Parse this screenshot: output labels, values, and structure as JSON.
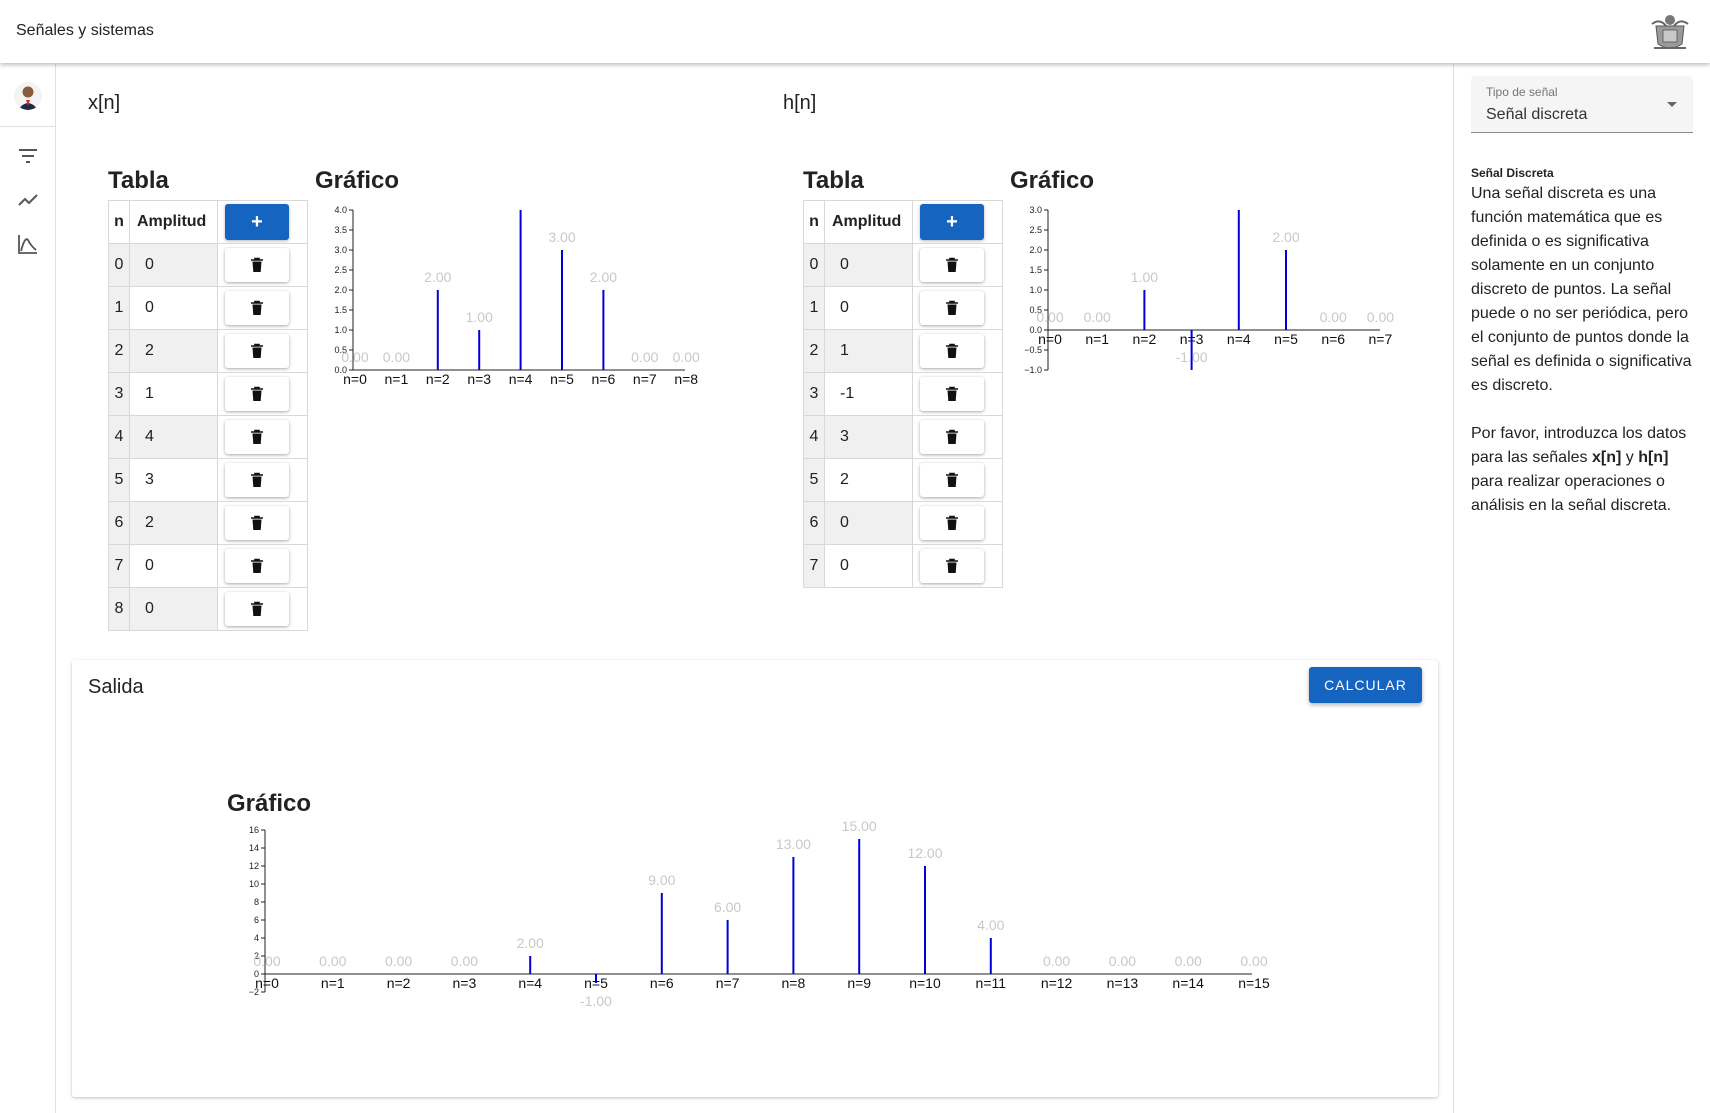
{
  "app": {
    "title": "Señales y sistemas"
  },
  "nav": {
    "icons": [
      "filter-icon",
      "line-chart-icon",
      "bell-curve-icon"
    ]
  },
  "signal_type": {
    "label": "Tipo de señal",
    "value": "Señal discreta"
  },
  "info": {
    "title": "Señal Discreta",
    "paragraph1": "Una señal discreta es una función matemática que es definida o es significativa solamente en un conjunto discreto de puntos. La señal puede o no ser periódica, pero el conjunto de puntos donde la señal es definida o significativa es discreto.",
    "p2_before": "Por favor, introduzca los datos para las señales ",
    "p2_x": "x[n]",
    "p2_mid": " y ",
    "p2_h": "h[n]",
    "p2_after": " para realizar operaciones o análisis en la señal discreta."
  },
  "x": {
    "label": "x[n]",
    "table_title": "Tabla",
    "chart_title": "Gráfico",
    "col_n": "n",
    "col_amp": "Amplitud",
    "add_label": "+",
    "rows": [
      {
        "n": "0",
        "amp": "0"
      },
      {
        "n": "1",
        "amp": "0"
      },
      {
        "n": "2",
        "amp": "2"
      },
      {
        "n": "3",
        "amp": "1"
      },
      {
        "n": "4",
        "amp": "4"
      },
      {
        "n": "5",
        "amp": "3"
      },
      {
        "n": "6",
        "amp": "2"
      },
      {
        "n": "7",
        "amp": "0"
      },
      {
        "n": "8",
        "amp": "0"
      }
    ]
  },
  "h": {
    "label": "h[n]",
    "table_title": "Tabla",
    "chart_title": "Gráfico",
    "col_n": "n",
    "col_amp": "Amplitud",
    "add_label": "+",
    "rows": [
      {
        "n": "0",
        "amp": "0"
      },
      {
        "n": "1",
        "amp": "0"
      },
      {
        "n": "2",
        "amp": "1"
      },
      {
        "n": "3",
        "amp": "-1"
      },
      {
        "n": "4",
        "amp": "3"
      },
      {
        "n": "5",
        "amp": "2"
      },
      {
        "n": "6",
        "amp": "0"
      },
      {
        "n": "7",
        "amp": "0"
      }
    ]
  },
  "output": {
    "label": "Salida",
    "button_label": "CALCULAR",
    "chart_title": "Gráfico"
  },
  "colors": {
    "accent": "#1565c0",
    "stem": "#0000dd",
    "data_label": "#c8c8c8"
  },
  "chart_data": [
    {
      "type": "stem",
      "categories": [
        "n=0",
        "n=1",
        "n=2",
        "n=3",
        "n=4",
        "n=5",
        "n=6",
        "n=7",
        "n=8"
      ],
      "values": [
        0,
        0,
        2,
        1,
        4,
        3,
        2,
        0,
        0
      ],
      "data_labels": [
        "0.00",
        "0.00",
        "2.00",
        "1.00",
        "",
        "3.00",
        "2.00",
        "0.00",
        "0.00"
      ],
      "ylim": [
        0,
        4
      ],
      "yticks": [
        "0.0",
        "0.5",
        "1.0",
        "1.5",
        "2.0",
        "2.5",
        "3.0",
        "3.5",
        "4.0"
      ]
    },
    {
      "type": "stem",
      "categories": [
        "n=0",
        "n=1",
        "n=2",
        "n=3",
        "n=4",
        "n=5",
        "n=6",
        "n=7"
      ],
      "values": [
        0,
        0,
        1,
        -1,
        3,
        2,
        0,
        0
      ],
      "data_labels": [
        "0.00",
        "0.00",
        "1.00",
        "-1.00",
        "",
        "2.00",
        "0.00",
        "0.00"
      ],
      "ylim": [
        -1,
        3
      ],
      "yticks": [
        "−1.0",
        "−0.5",
        "0.0",
        "0.5",
        "1.0",
        "1.5",
        "2.0",
        "2.5",
        "3.0"
      ]
    },
    {
      "type": "stem",
      "categories": [
        "n=0",
        "n=1",
        "n=2",
        "n=3",
        "n=4",
        "n=5",
        "n=6",
        "n=7",
        "n=8",
        "n=9",
        "n=10",
        "n=11",
        "n=12",
        "n=13",
        "n=14",
        "n=15"
      ],
      "values": [
        0,
        0,
        0,
        0,
        2,
        -1,
        9,
        6,
        13,
        15,
        12,
        4,
        0,
        0,
        0,
        0
      ],
      "data_labels": [
        "0.00",
        "0.00",
        "0.00",
        "0.00",
        "2.00",
        "-1.00",
        "9.00",
        "6.00",
        "13.00",
        "15.00",
        "12.00",
        "4.00",
        "0.00",
        "0.00",
        "0.00",
        "0.00"
      ],
      "ylim": [
        -2,
        16
      ],
      "yticks": [
        "−2",
        "0",
        "2",
        "4",
        "6",
        "8",
        "10",
        "12",
        "14",
        "16"
      ]
    }
  ]
}
